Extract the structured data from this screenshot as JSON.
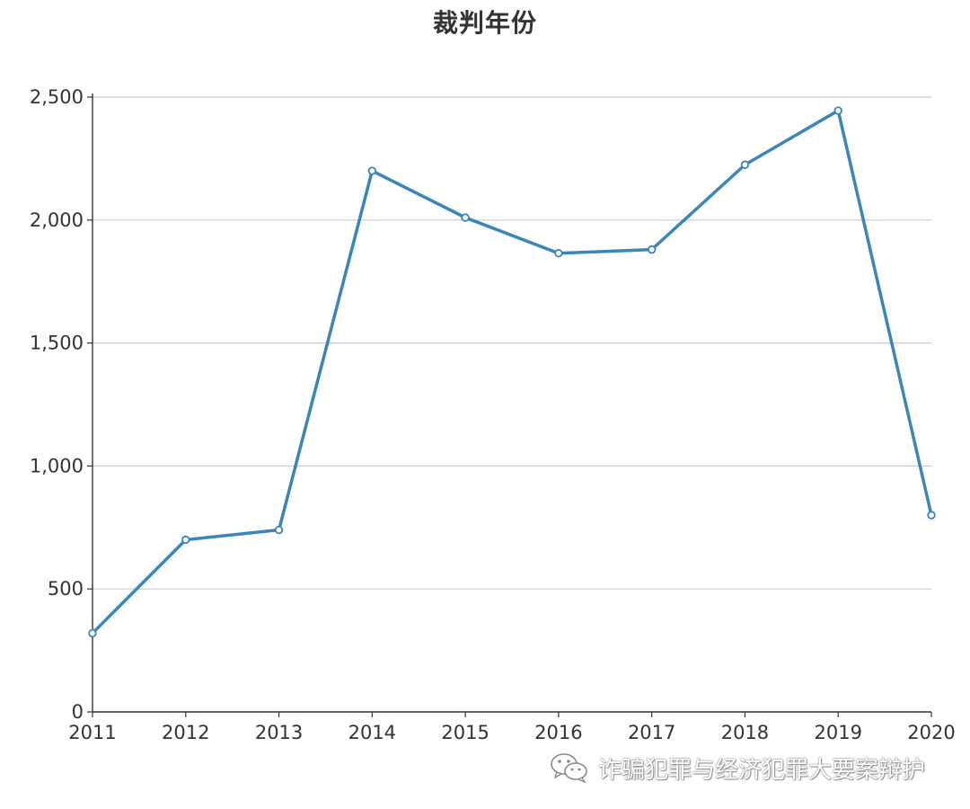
{
  "chart_data": {
    "type": "line",
    "title": "裁判年份",
    "xlabel": "",
    "ylabel": "",
    "categories": [
      "2011",
      "2012",
      "2013",
      "2014",
      "2015",
      "2016",
      "2017",
      "2018",
      "2019",
      "2020"
    ],
    "series": [
      {
        "values": [
          320,
          700,
          740,
          2200,
          2010,
          1865,
          1880,
          2225,
          2445,
          800
        ]
      }
    ],
    "ylim": [
      0,
      2500
    ],
    "yticks": [
      0,
      500,
      1000,
      1500,
      2000,
      2500
    ],
    "ytick_labels": [
      "0",
      "500",
      "1,000",
      "1,500",
      "2,000",
      "2,500"
    ],
    "grid": true,
    "legend": "none",
    "line_color": "#3a86b8",
    "marker_fill": "#ffffff"
  },
  "watermark": {
    "icon": "wechat-icon",
    "text": "诈骗犯罪与经济犯罪大要案辩护"
  }
}
